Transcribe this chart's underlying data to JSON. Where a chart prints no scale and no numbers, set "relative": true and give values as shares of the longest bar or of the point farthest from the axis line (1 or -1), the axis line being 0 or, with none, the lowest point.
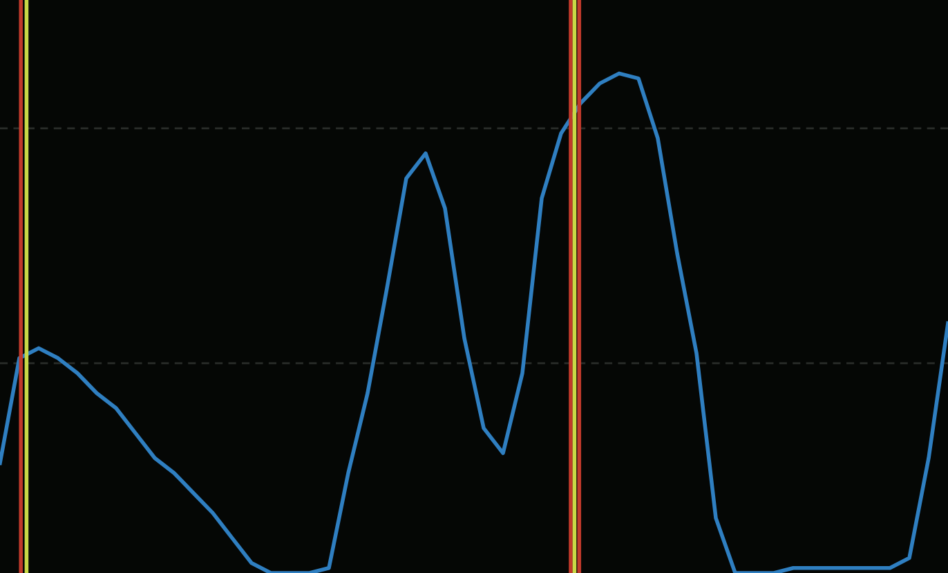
{
  "chart_data": {
    "type": "line",
    "relative": true,
    "grid": false,
    "line_style": "solid",
    "marker": "none",
    "categories": [
      null,
      null,
      null,
      null,
      null,
      null,
      null,
      null,
      null,
      null,
      null,
      null,
      null,
      null,
      null,
      null,
      null,
      null,
      null,
      null,
      null,
      null,
      null,
      null,
      null,
      null,
      null,
      null,
      null,
      null,
      null,
      null,
      null,
      null,
      null,
      null,
      null,
      null,
      null,
      null,
      null,
      null,
      null,
      null,
      null,
      null,
      null,
      null,
      null,
      null
    ],
    "series": [
      {
        "color": "#2f7fc1",
        "values": [
          0.22,
          0.43,
          0.45,
          0.43,
          0.4,
          0.36,
          0.33,
          0.28,
          0.23,
          0.2,
          0.16,
          0.12,
          0.07,
          0.02,
          0.0,
          0.0,
          0.0,
          0.01,
          0.2,
          0.36,
          0.57,
          0.79,
          0.84,
          0.73,
          0.47,
          0.29,
          0.24,
          0.4,
          0.75,
          0.88,
          0.94,
          0.98,
          1.0,
          0.99,
          0.87,
          0.64,
          0.44,
          0.11,
          0.0,
          0.0,
          0.0,
          0.01,
          0.01,
          0.01,
          0.01,
          0.01,
          0.01,
          0.03,
          0.23,
          0.5
        ]
      }
    ],
    "ref_lines": [
      {
        "axis": "y",
        "value": 0.89,
        "color": "#2a2d2a",
        "line_style": "dashed"
      },
      {
        "axis": "y",
        "value": 0.42,
        "color": "#2a2d2a",
        "line_style": "dashed"
      }
    ]
  }
}
